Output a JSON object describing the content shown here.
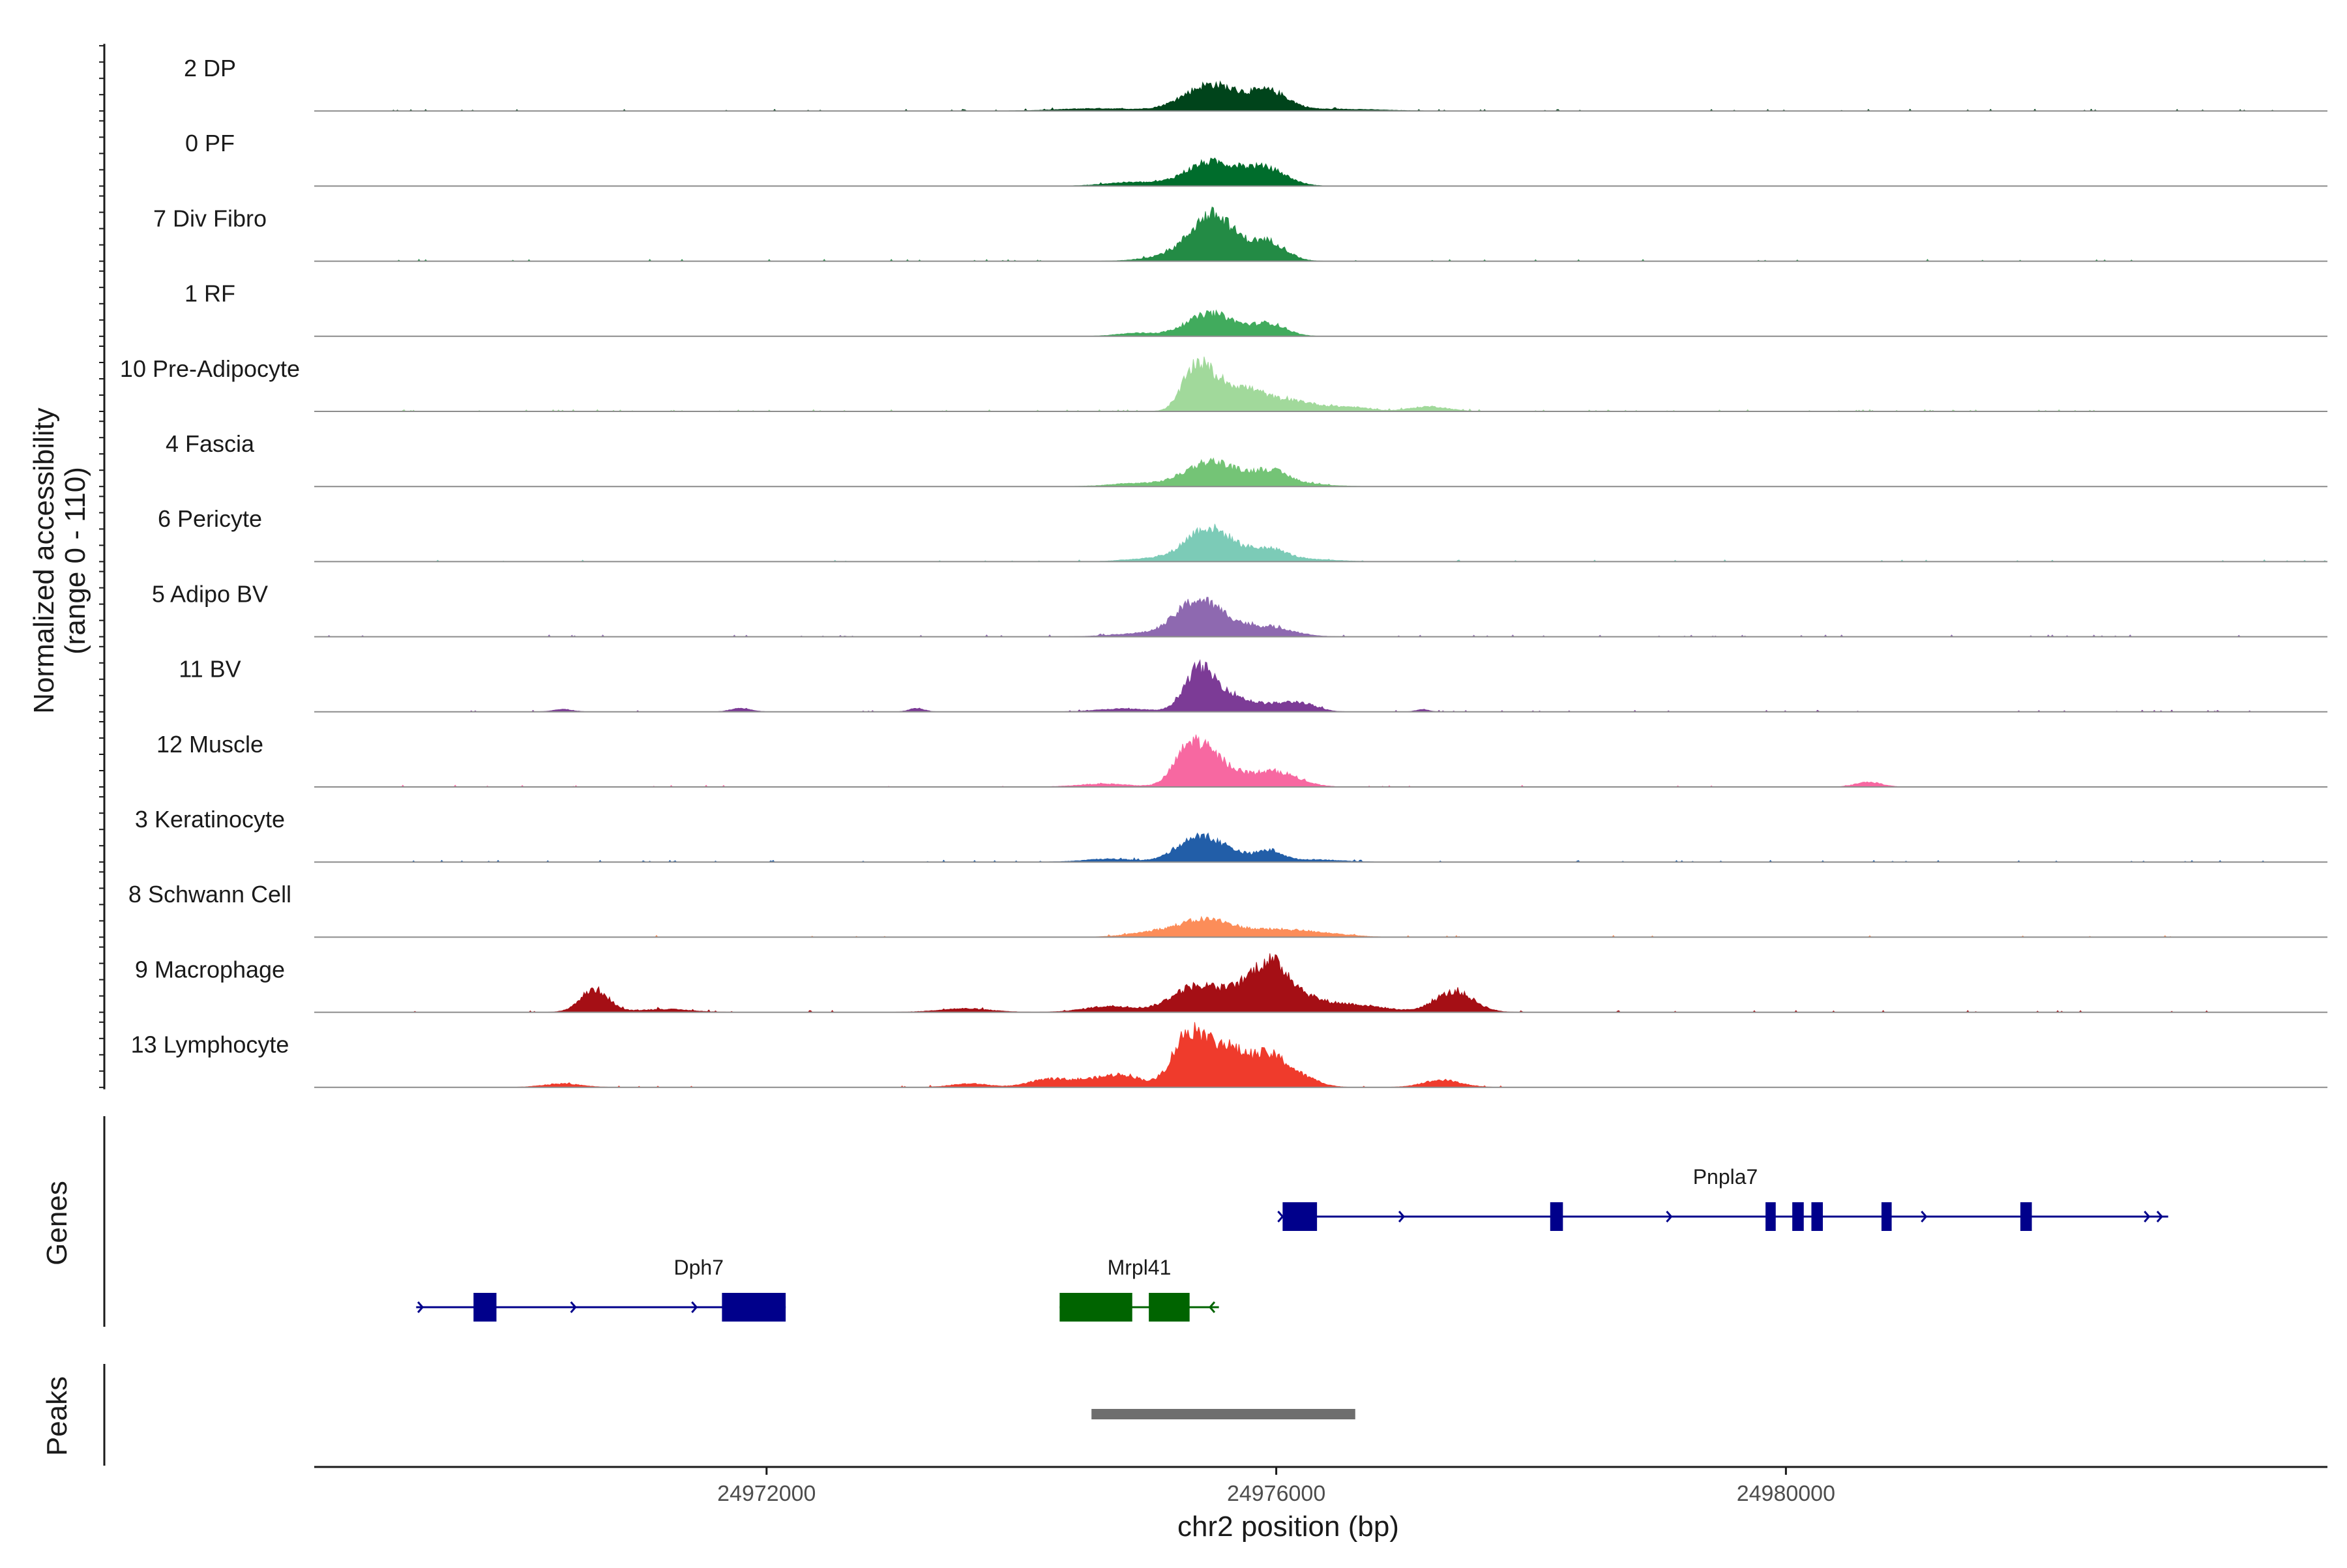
{
  "chart_data": {
    "type": "area",
    "title": "",
    "ylabel_line1": "Normalized accessibility",
    "ylabel_line2": "(range 0 - 110)",
    "ylim": [
      0,
      110
    ],
    "xlabel": "chr2 position (bp)",
    "xlim": [
      24968450,
      24984250
    ],
    "x_ticks": [
      24972000,
      24976000,
      24980000
    ],
    "x_tick_labels": [
      "24972000",
      "24976000",
      "24980000"
    ],
    "tracks": [
      {
        "name": "2 DP",
        "color": "#00441b",
        "peaks": [
          [
            24975490,
            44,
            210
          ],
          [
            24975950,
            30,
            150
          ],
          [
            24974600,
            4,
            300
          ],
          [
            24976500,
            3,
            300
          ]
        ],
        "noise": 0.05,
        "noise_span": [
          24968450,
          24984250
        ]
      },
      {
        "name": "0 PF",
        "color": "#006d2c",
        "peaks": [
          [
            24975490,
            40,
            200
          ],
          [
            24975950,
            24,
            150
          ],
          [
            24974850,
            6,
            200
          ],
          [
            24975800,
            7,
            120
          ]
        ],
        "noise": 0.03,
        "noise_span": [
          24974500,
          24976600
        ]
      },
      {
        "name": "7 Div Fibro",
        "color": "#238b45",
        "peaks": [
          [
            24975490,
            70,
            160
          ],
          [
            24975950,
            30,
            130
          ],
          [
            24975200,
            10,
            200
          ],
          [
            24975700,
            12,
            150
          ]
        ],
        "noise": 0.07,
        "noise_span": [
          24969100,
          24983000
        ]
      },
      {
        "name": "1 RF",
        "color": "#41ab5d",
        "peaks": [
          [
            24975490,
            38,
            190
          ],
          [
            24975950,
            20,
            130
          ],
          [
            24974900,
            5,
            150
          ]
        ],
        "noise": 0.02,
        "noise_span": [
          24974600,
          24976400
        ]
      },
      {
        "name": "10 Pre-Adipocyte",
        "color": "#a1d99b",
        "peaks": [
          [
            24975360,
            60,
            100
          ],
          [
            24975550,
            45,
            150
          ],
          [
            24975820,
            20,
            120
          ],
          [
            24976100,
            18,
            220
          ],
          [
            24977200,
            8,
            150
          ],
          [
            24976600,
            6,
            150
          ]
        ],
        "noise": 0.09,
        "noise_span": [
          24969100,
          24983000
        ]
      },
      {
        "name": "4 Fascia",
        "color": "#74c476",
        "peaks": [
          [
            24975490,
            42,
            200
          ],
          [
            24975950,
            24,
            140
          ],
          [
            24974900,
            5,
            200
          ],
          [
            24976200,
            4,
            200
          ]
        ],
        "noise": 0.04,
        "noise_span": [
          24974500,
          24976700
        ]
      },
      {
        "name": "6 Pericyte",
        "color": "#7ccbb7",
        "peaks": [
          [
            24975400,
            40,
            140
          ],
          [
            24975600,
            30,
            150
          ],
          [
            24975950,
            20,
            140
          ],
          [
            24975050,
            6,
            200
          ],
          [
            24976300,
            3,
            200
          ]
        ],
        "noise": 0.04,
        "noise_span": [
          24968450,
          24984250
        ]
      },
      {
        "name": "5 Adipo BV",
        "color": "#8e69b0",
        "peaks": [
          [
            24975380,
            60,
            170
          ],
          [
            24975650,
            12,
            130
          ],
          [
            24975950,
            16,
            180
          ],
          [
            24974900,
            5,
            200
          ]
        ],
        "noise": 0.04,
        "noise_span": [
          24968450,
          24984250
        ]
      },
      {
        "name": "11 BV",
        "color": "#7c3b96",
        "peaks": [
          [
            24975380,
            60,
            110
          ],
          [
            24975570,
            30,
            150
          ],
          [
            24975950,
            12,
            200
          ],
          [
            24976200,
            10,
            120
          ],
          [
            24974800,
            5,
            200
          ],
          [
            24971800,
            6,
            80
          ],
          [
            24970400,
            4,
            80
          ],
          [
            24973180,
            6,
            60
          ],
          [
            24977150,
            4,
            50
          ]
        ],
        "noise": 0.05,
        "noise_span": [
          24969600,
          24983800
        ]
      },
      {
        "name": "12 Muscle",
        "color": "#f768a1",
        "peaks": [
          [
            24975320,
            60,
            120
          ],
          [
            24975530,
            40,
            150
          ],
          [
            24975980,
            26,
            180
          ],
          [
            24974650,
            5,
            200
          ],
          [
            24980650,
            8,
            100
          ]
        ],
        "noise": 0.04,
        "noise_span": [
          24969100,
          24981000
        ]
      },
      {
        "name": "3 Keratinocyte",
        "color": "#225ea8",
        "peaks": [
          [
            24975350,
            36,
            150
          ],
          [
            24975600,
            20,
            150
          ],
          [
            24975950,
            18,
            100
          ],
          [
            24974700,
            5,
            200
          ],
          [
            24976300,
            4,
            200
          ]
        ],
        "noise": 0.05,
        "noise_span": [
          24969000,
          24984000
        ]
      },
      {
        "name": "8 Schwann Cell",
        "color": "#fc8d59",
        "peaks": [
          [
            24975450,
            28,
            200
          ],
          [
            24976000,
            12,
            250
          ],
          [
            24975050,
            8,
            200
          ],
          [
            24976400,
            4,
            200
          ]
        ],
        "noise": 0.03,
        "noise_span": [
          24968450,
          24984250
        ]
      },
      {
        "name": "9 Macrophage",
        "color": "#a50f15",
        "peaks": [
          [
            24975350,
            40,
            180
          ],
          [
            24975950,
            64,
            150
          ],
          [
            24975700,
            25,
            180
          ],
          [
            24977400,
            34,
            150
          ],
          [
            24970650,
            38,
            110
          ],
          [
            24976600,
            12,
            250
          ],
          [
            24974700,
            10,
            200
          ],
          [
            24973550,
            6,
            200
          ],
          [
            24976150,
            20,
            200
          ],
          [
            24971200,
            5,
            200
          ]
        ],
        "noise": 0.05,
        "noise_span": [
          24969000,
          24983800
        ]
      },
      {
        "name": "13 Lymphocyte",
        "color": "#ef3b2c",
        "peaks": [
          [
            24975300,
            80,
            120
          ],
          [
            24975550,
            55,
            150
          ],
          [
            24975960,
            50,
            150
          ],
          [
            24974800,
            20,
            150
          ],
          [
            24975700,
            18,
            150
          ],
          [
            24974200,
            12,
            150
          ],
          [
            24977300,
            12,
            150
          ],
          [
            24976250,
            10,
            120
          ],
          [
            24970400,
            6,
            150
          ],
          [
            24973600,
            6,
            150
          ],
          [
            24974500,
            10,
            150
          ]
        ],
        "noise": 0.03,
        "noise_span": [
          24970000,
          24977800
        ]
      }
    ],
    "genes_label": "Genes",
    "genes": [
      {
        "name": "Dph7",
        "strand": "+",
        "color": "#00008b",
        "start": 24969250,
        "end": 24972150,
        "exons": [
          [
            24969700,
            24969880
          ],
          [
            24971650,
            24972150
          ]
        ],
        "arrows": [
          24969300,
          24970500,
          24971450
        ]
      },
      {
        "name": "Mrpl41",
        "strand": "-",
        "color": "#006400",
        "start": 24974300,
        "end": 24975550,
        "exons": [
          [
            24974300,
            24974870
          ],
          [
            24975000,
            24975320
          ]
        ],
        "arrows": [
          24975480
        ]
      },
      {
        "name": "Pnpla7",
        "strand": "+",
        "color": "#00008b",
        "start": 24976050,
        "end": 24983000,
        "exons": [
          [
            24976050,
            24976320
          ],
          [
            24978150,
            24978250
          ],
          [
            24979840,
            24979920
          ],
          [
            24980050,
            24980140
          ],
          [
            24980200,
            24980290
          ],
          [
            24980750,
            24980830
          ],
          [
            24981840,
            24981930
          ]
        ],
        "arrows": [
          24976050,
          24977000,
          24979100,
          24981100,
          24982850,
          24982950
        ]
      }
    ],
    "peaks_label": "Peaks",
    "peak_regions": [
      [
        24974550,
        24976620
      ]
    ]
  }
}
